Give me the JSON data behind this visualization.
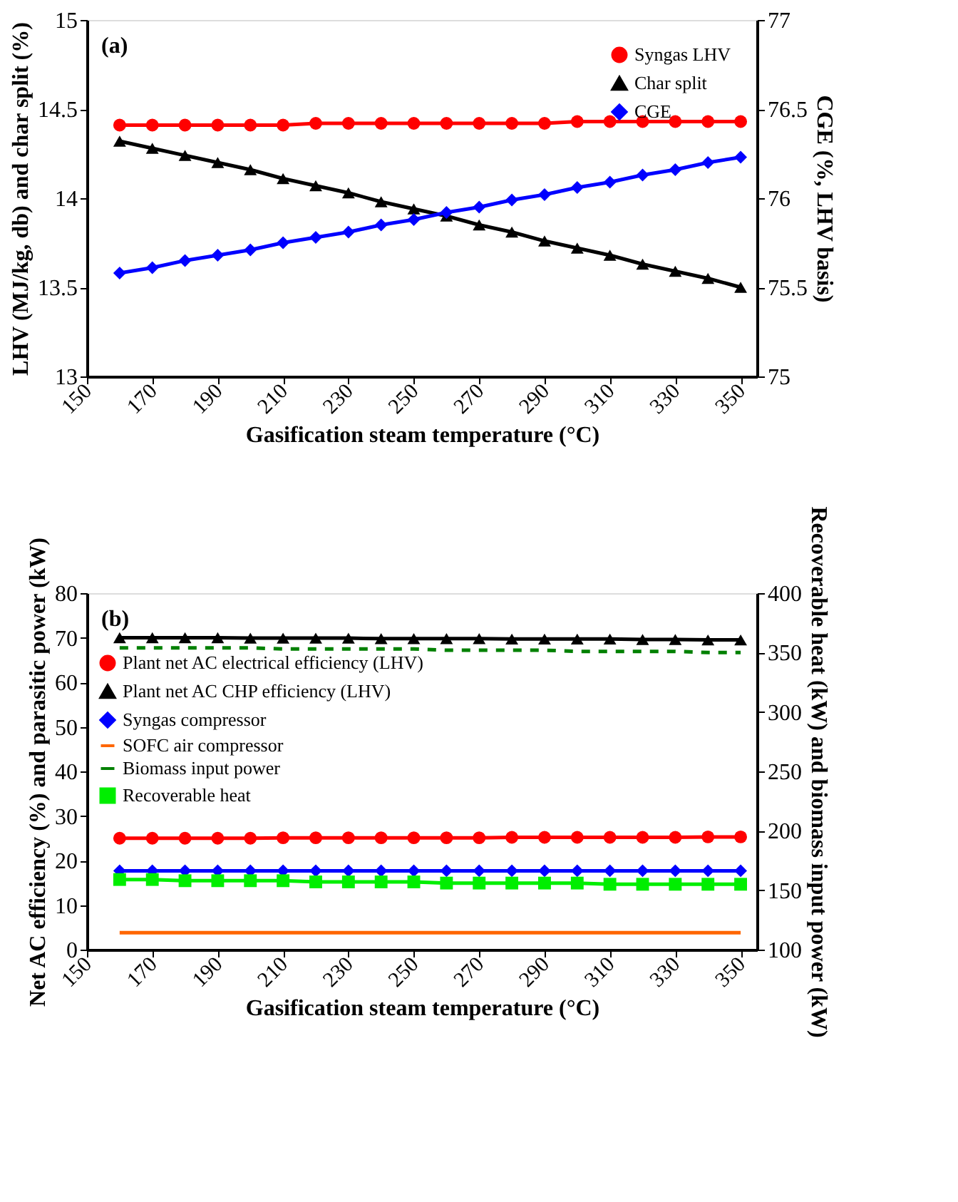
{
  "chart_data": [
    {
      "type": "line",
      "annotations": [
        "(a)"
      ],
      "xlabel": "Gasification steam temperature (°C)",
      "ylabel": "LHV (MJ/kg, db) and char split (%)",
      "y2label": "CGE (%, LHV basis)",
      "x": [
        160,
        170,
        180,
        190,
        200,
        210,
        220,
        230,
        240,
        250,
        260,
        270,
        280,
        290,
        300,
        310,
        320,
        330,
        340,
        350
      ],
      "xlim": [
        150,
        355
      ],
      "xticks": [
        150,
        170,
        190,
        210,
        230,
        250,
        270,
        290,
        310,
        330,
        350
      ],
      "ylim": [
        13,
        15
      ],
      "yticks": [
        13,
        13.5,
        14,
        14.5,
        15
      ],
      "y2lim": [
        75,
        77
      ],
      "y2ticks": [
        75,
        75.5,
        76,
        76.5,
        77
      ],
      "grid": false,
      "legend": "top right",
      "series": [
        {
          "name": "Syngas LHV",
          "color": "#ff0000",
          "marker": "circle",
          "values": [
            14.41,
            14.41,
            14.41,
            14.41,
            14.41,
            14.41,
            14.42,
            14.42,
            14.42,
            14.42,
            14.42,
            14.42,
            14.42,
            14.42,
            14.43,
            14.43,
            14.43,
            14.43,
            14.43,
            14.43
          ]
        },
        {
          "name": "Char split",
          "color": "#000000",
          "marker": "triangle",
          "values": [
            14.32,
            14.28,
            14.24,
            14.2,
            14.16,
            14.11,
            14.07,
            14.03,
            13.98,
            13.94,
            13.9,
            13.85,
            13.81,
            13.76,
            13.72,
            13.68,
            13.63,
            13.59,
            13.55,
            13.5
          ]
        },
        {
          "name": "CGE",
          "color": "#0000ff",
          "marker": "diamond",
          "axis": "y2",
          "values": [
            75.58,
            75.61,
            75.65,
            75.68,
            75.71,
            75.75,
            75.78,
            75.81,
            75.85,
            75.88,
            75.92,
            75.95,
            75.99,
            76.02,
            76.06,
            76.09,
            76.13,
            76.16,
            76.2,
            76.23
          ]
        }
      ]
    },
    {
      "type": "line",
      "annotations": [
        "(b)"
      ],
      "xlabel": "Gasification steam temperature (°C)",
      "ylabel": "Net AC efficiency (%) and parasitic power (kW)",
      "y2label": "Recoverable heat (kW) and biomass input power (kW)",
      "x": [
        160,
        170,
        180,
        190,
        200,
        210,
        220,
        230,
        240,
        250,
        260,
        270,
        280,
        290,
        300,
        310,
        320,
        330,
        340,
        350
      ],
      "xlim": [
        150,
        355
      ],
      "xticks": [
        150,
        170,
        190,
        210,
        230,
        250,
        270,
        290,
        310,
        330,
        350
      ],
      "ylim": [
        0,
        80
      ],
      "yticks": [
        0,
        10,
        20,
        30,
        40,
        50,
        60,
        70,
        80
      ],
      "y2lim": [
        100,
        400
      ],
      "y2ticks": [
        100,
        150,
        200,
        250,
        300,
        350,
        400
      ],
      "grid": false,
      "legend": "left",
      "series": [
        {
          "name": "Plant net AC electrical efficiency (LHV)",
          "color": "#ff0000",
          "marker": "circle",
          "values": [
            25,
            25,
            25,
            25,
            25,
            25.1,
            25.1,
            25.1,
            25.1,
            25.1,
            25.1,
            25.1,
            25.2,
            25.2,
            25.2,
            25.2,
            25.2,
            25.2,
            25.3,
            25.3
          ]
        },
        {
          "name": "Plant net AC CHP efficiency (LHV)",
          "color": "#000000",
          "marker": "triangle",
          "values": [
            70,
            70,
            70,
            70,
            69.9,
            69.9,
            69.9,
            69.9,
            69.8,
            69.8,
            69.8,
            69.8,
            69.7,
            69.7,
            69.7,
            69.7,
            69.6,
            69.6,
            69.5,
            69.5
          ]
        },
        {
          "name": "Syngas compressor",
          "color": "#0000ff",
          "marker": "diamond",
          "values": [
            17.7,
            17.7,
            17.7,
            17.7,
            17.7,
            17.7,
            17.7,
            17.7,
            17.7,
            17.7,
            17.7,
            17.7,
            17.7,
            17.7,
            17.7,
            17.7,
            17.7,
            17.7,
            17.7,
            17.7
          ]
        },
        {
          "name": "SOFC air compressor",
          "color": "#ff6600",
          "marker": "none",
          "values": [
            3.8,
            3.8,
            3.8,
            3.8,
            3.8,
            3.8,
            3.8,
            3.8,
            3.8,
            3.8,
            3.8,
            3.8,
            3.8,
            3.8,
            3.8,
            3.8,
            3.8,
            3.8,
            3.8,
            3.8
          ]
        },
        {
          "name": "Biomass input power",
          "color": "#008000",
          "marker": "none",
          "line_style": "dashed",
          "axis": "y2",
          "values": [
            354,
            354,
            354,
            354,
            354,
            353,
            353,
            353,
            353,
            353,
            352,
            352,
            352,
            352,
            351,
            351,
            351,
            351,
            350,
            350
          ]
        },
        {
          "name": "Recoverable heat",
          "color": "#00ee00",
          "marker": "square",
          "axis": "y2",
          "values": [
            159,
            159,
            158,
            158,
            158,
            158,
            157,
            157,
            157,
            157,
            156,
            156,
            156,
            156,
            156,
            155,
            155,
            155,
            155,
            155
          ]
        }
      ]
    }
  ]
}
